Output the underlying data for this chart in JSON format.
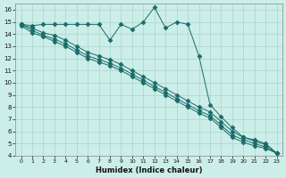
{
  "xlabel": "Humidex (Indice chaleur)",
  "bg_color": "#cceee8",
  "grid_color": "#aad4cc",
  "line_color": "#1a6b6b",
  "xlim": [
    -0.5,
    23.5
  ],
  "ylim": [
    4,
    16.5
  ],
  "yticks": [
    4,
    5,
    6,
    7,
    8,
    9,
    10,
    11,
    12,
    13,
    14,
    15,
    16
  ],
  "xticks": [
    0,
    1,
    2,
    3,
    4,
    5,
    6,
    7,
    8,
    9,
    10,
    11,
    12,
    13,
    14,
    15,
    16,
    17,
    18,
    19,
    20,
    21,
    22,
    23
  ],
  "series": [
    {
      "x": [
        0,
        1,
        2,
        3,
        4,
        5,
        6,
        7,
        8,
        9,
        10,
        11,
        12,
        13,
        14,
        15,
        16,
        17,
        18,
        19,
        20,
        21,
        22,
        23
      ],
      "y": [
        14.8,
        14.7,
        14.8,
        14.8,
        14.8,
        14.8,
        14.8,
        14.8,
        13.5,
        14.8,
        14.4,
        15.0,
        16.2,
        14.5,
        15.0,
        14.8,
        12.2,
        8.2,
        7.2,
        6.3,
        5.5,
        5.3,
        5.0,
        4.2
      ]
    },
    {
      "x": [
        0,
        1,
        2,
        3,
        4,
        5,
        6,
        7,
        8,
        9,
        10,
        11,
        12,
        13,
        14,
        15,
        16,
        17,
        18,
        19,
        20,
        21,
        22,
        23
      ],
      "y": [
        14.8,
        14.5,
        14.1,
        13.9,
        13.5,
        13.0,
        12.5,
        12.2,
        11.9,
        11.5,
        11.0,
        10.5,
        10.0,
        9.5,
        9.0,
        8.5,
        8.0,
        7.6,
        6.8,
        6.0,
        5.5,
        5.2,
        4.9,
        4.2
      ]
    },
    {
      "x": [
        0,
        1,
        2,
        3,
        4,
        5,
        6,
        7,
        8,
        9,
        10,
        11,
        12,
        13,
        14,
        15,
        16,
        17,
        18,
        19,
        20,
        21,
        22,
        23
      ],
      "y": [
        14.8,
        14.3,
        13.9,
        13.6,
        13.2,
        12.7,
        12.2,
        11.9,
        11.6,
        11.2,
        10.7,
        10.2,
        9.7,
        9.2,
        8.7,
        8.2,
        7.7,
        7.3,
        6.5,
        5.7,
        5.3,
        5.0,
        4.7,
        4.2
      ]
    },
    {
      "x": [
        0,
        1,
        2,
        3,
        4,
        5,
        6,
        7,
        8,
        9,
        10,
        11,
        12,
        13,
        14,
        15,
        16,
        17,
        18,
        19,
        20,
        21,
        22,
        23
      ],
      "y": [
        14.7,
        14.1,
        13.8,
        13.4,
        13.0,
        12.5,
        12.0,
        11.7,
        11.4,
        11.0,
        10.5,
        10.0,
        9.5,
        9.0,
        8.5,
        8.0,
        7.5,
        7.1,
        6.3,
        5.5,
        5.1,
        4.8,
        4.6,
        4.2
      ]
    }
  ]
}
